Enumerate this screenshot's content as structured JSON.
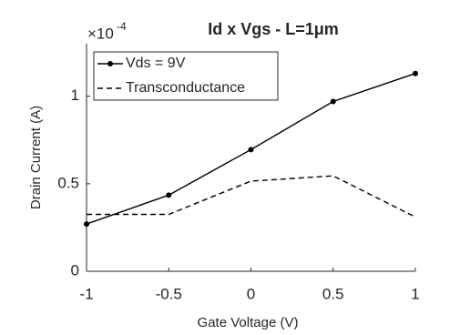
{
  "chart_data": {
    "type": "line",
    "title": "Id x Vgs - L=1μm",
    "multiplier": "×10",
    "multiplier_exponent": "-4",
    "xlabel": "Gate Voltage (V)",
    "ylabel": "Drain Current (A)",
    "x": [
      -1,
      -0.5,
      0,
      0.5,
      1
    ],
    "series": [
      {
        "name": "Vds = 9V",
        "color": "#000000",
        "style": "solid",
        "marker": "circle",
        "values": [
          0.27,
          0.435,
          0.695,
          0.97,
          1.13
        ]
      },
      {
        "name": "Transconductance",
        "color": "#000000",
        "style": "dashed",
        "marker": "none",
        "values": [
          0.325,
          0.325,
          0.515,
          0.545,
          0.31
        ]
      }
    ],
    "xlim": [
      -1,
      1
    ],
    "xticks": [
      -1,
      -0.5,
      0,
      0.5,
      1
    ],
    "ylim": [
      0,
      1.3
    ],
    "yticks": [
      0,
      0.5,
      1
    ],
    "grid": false,
    "legend": "upper left"
  }
}
